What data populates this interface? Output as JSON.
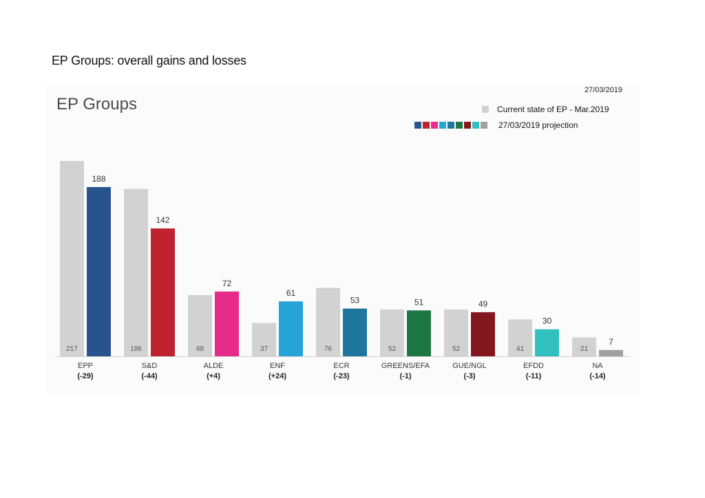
{
  "page_heading": "EP Groups: overall gains and losses",
  "date": "27/03/2019",
  "chart_data": {
    "type": "bar",
    "title": "EP Groups",
    "categories": [
      "EPP",
      "S&D",
      "ALDE",
      "ENF",
      "ECR",
      "GREENS/EFA",
      "GUE/NGL",
      "EFDD",
      "NA"
    ],
    "deltas": [
      "(-29)",
      "(-44)",
      "(+4)",
      "(+24)",
      "(-23)",
      "(-1)",
      "(-3)",
      "(-11)",
      "(-14)"
    ],
    "series": [
      {
        "name": "Current state of EP - Mar.2019",
        "values": [
          217,
          186,
          68,
          37,
          76,
          52,
          52,
          41,
          21
        ],
        "color": "#d3d2d3"
      },
      {
        "name": "27/03/2019 projection",
        "values": [
          188,
          142,
          72,
          61,
          53,
          51,
          49,
          30,
          7
        ],
        "colors": [
          "#27548f",
          "#c0222f",
          "#e62b8a",
          "#26a3d8",
          "#1e789e",
          "#1d7643",
          "#83161f",
          "#31c0c0",
          "#a0a0a0"
        ]
      }
    ],
    "ylim": [
      0,
      217
    ],
    "xlabel": "",
    "ylabel": "",
    "grid": false,
    "legend_position": "top-right"
  }
}
